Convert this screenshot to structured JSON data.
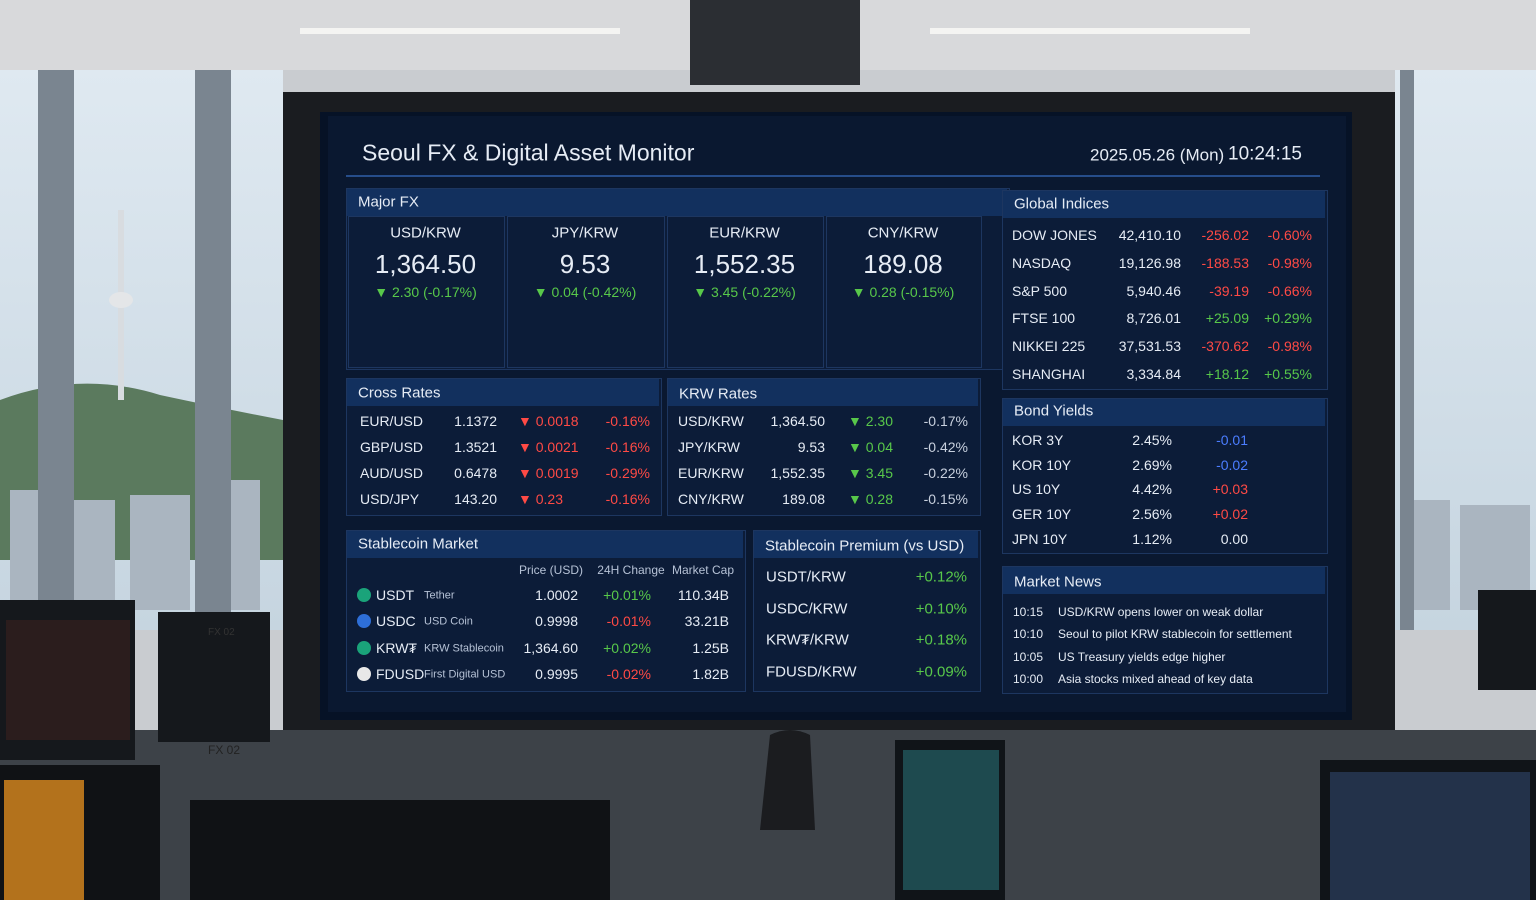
{
  "header": {
    "title": "Seoul  FX & Digital Asset Monitor",
    "date": "2025.05.26 (Mon)",
    "time": "10:24:15"
  },
  "major_fx": {
    "title": "Major FX",
    "cards": [
      {
        "pair": "USD/KRW",
        "rate": "1,364.50",
        "change": "▼ 2.30 (-0.17%)"
      },
      {
        "pair": "JPY/KRW",
        "rate": "9.53",
        "change": "▼ 0.04 (-0.42%)"
      },
      {
        "pair": "EUR/KRW",
        "rate": "1,552.35",
        "change": "▼ 3.45 (-0.22%)"
      },
      {
        "pair": "CNY/KRW",
        "rate": "189.08",
        "change": "▼ 0.28 (-0.15%)"
      }
    ]
  },
  "cross_rates": {
    "title": "Cross Rates",
    "rows": [
      [
        "EUR/USD",
        "1.1372",
        "▼ 0.0018",
        "-0.16%"
      ],
      [
        "GBP/USD",
        "1.3521",
        "▼ 0.0021",
        "-0.16%"
      ],
      [
        "AUD/USD",
        "0.6478",
        "▼ 0.0019",
        "-0.29%"
      ],
      [
        "USD/JPY",
        "143.20",
        "▼ 0.23",
        "-0.16%"
      ]
    ]
  },
  "krw_rates": {
    "title": "KRW Rates",
    "rows": [
      [
        "USD/KRW",
        "1,364.50",
        "▼ 2.30",
        "-0.17%"
      ],
      [
        "JPY/KRW",
        "9.53",
        "▼ 0.04",
        "-0.42%"
      ],
      [
        "EUR/KRW",
        "1,552.35",
        "▼ 3.45",
        "-0.22%"
      ],
      [
        "CNY/KRW",
        "189.08",
        "▼ 0.28",
        "-0.15%"
      ]
    ]
  },
  "stablecoin_market": {
    "title": "Stablecoin Market",
    "columns": [
      "Price (USD)",
      "24H Change",
      "Market Cap"
    ],
    "rows": [
      {
        "symbol": "USDT",
        "name": "Tether",
        "price": "1.0002",
        "change": "+0.01%",
        "cap": "110.34B"
      },
      {
        "symbol": "USDC",
        "name": "USD Coin",
        "price": "0.9998",
        "change": "-0.01%",
        "cap": "33.21B"
      },
      {
        "symbol": "KRW₮",
        "name": "KRW Stablecoin",
        "price": "1,364.60",
        "change": "+0.02%",
        "cap": "1.25B"
      },
      {
        "symbol": "FDUSD",
        "name": "First Digital USD",
        "price": "0.9995",
        "change": "-0.02%",
        "cap": "1.82B"
      }
    ]
  },
  "stablecoin_premium": {
    "title": "Stablecoin Premium (vs USD)",
    "rows": [
      [
        "USDT/KRW",
        "+0.12%"
      ],
      [
        "USDC/KRW",
        "+0.10%"
      ],
      [
        "KRW₮/KRW",
        "+0.18%"
      ],
      [
        "FDUSD/KRW",
        "+0.09%"
      ]
    ]
  },
  "global_indices": {
    "title": "Global Indices",
    "rows": [
      [
        "DOW JONES",
        "42,410.10",
        "-256.02",
        "-0.60%"
      ],
      [
        "NASDAQ",
        "19,126.98",
        "-188.53",
        "-0.98%"
      ],
      [
        "S&P 500",
        "5,940.46",
        "-39.19",
        "-0.66%"
      ],
      [
        "FTSE 100",
        "8,726.01",
        "+25.09",
        "+0.29%"
      ],
      [
        "NIKKEI 225",
        "37,531.53",
        "-370.62",
        "-0.98%"
      ],
      [
        "SHANGHAI",
        "3,334.84",
        "+18.12",
        "+0.55%"
      ]
    ]
  },
  "bond_yields": {
    "title": "Bond Yields",
    "rows": [
      [
        "KOR 3Y",
        "2.45%",
        "-0.01"
      ],
      [
        "KOR 10Y",
        "2.69%",
        "-0.02"
      ],
      [
        "US 10Y",
        "4.42%",
        "+0.03"
      ],
      [
        "GER 10Y",
        "2.56%",
        "+0.02"
      ],
      [
        "JPN 10Y",
        "1.12%",
        "0.00"
      ]
    ]
  },
  "market_news": {
    "title": "Market News",
    "rows": [
      [
        "10:15",
        "USD/KRW opens lower on weak dollar"
      ],
      [
        "10:10",
        "Seoul to pilot KRW stablecoin for settlement"
      ],
      [
        "10:05",
        "US Treasury yields edge higher"
      ],
      [
        "10:00",
        "Asia stocks mixed ahead of key data"
      ]
    ]
  },
  "scene": {
    "monitor_labels": [
      "FX 02",
      "FX 02"
    ]
  }
}
